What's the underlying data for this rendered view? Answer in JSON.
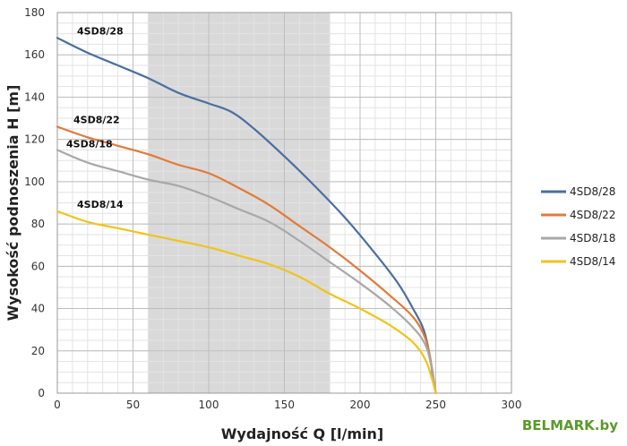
{
  "chart_data": {
    "type": "line",
    "title": "",
    "xlabel": "Wydajność Q [l/min]",
    "ylabel": "Wysokość podnoszenia H [m]",
    "xlim": [
      0,
      300
    ],
    "ylim": [
      0,
      180
    ],
    "xticks": [
      0,
      50,
      100,
      150,
      200,
      250,
      300
    ],
    "yticks": [
      0,
      20,
      40,
      60,
      80,
      100,
      120,
      140,
      160,
      180
    ],
    "xtick_labels": [
      "0",
      "50",
      "100",
      "150",
      "200",
      "250",
      "300"
    ],
    "ytick_labels": [
      "0",
      "20",
      "40",
      "60",
      "80",
      "100",
      "120",
      "140",
      "160",
      "180"
    ],
    "grid": true,
    "shaded_x_range": [
      60,
      180
    ],
    "legend_position": "right",
    "series": [
      {
        "name": "4SD8/28",
        "color": "#4a6f9f",
        "x": [
          0,
          20,
          40,
          60,
          80,
          100,
          115,
          130,
          150,
          170,
          190,
          210,
          225,
          235,
          242,
          246,
          248,
          250
        ],
        "y": [
          168,
          161,
          155,
          149,
          142,
          137,
          133,
          125,
          112,
          98,
          83,
          66,
          52,
          40,
          30,
          18,
          8,
          0
        ]
      },
      {
        "name": "4SD8/22",
        "color": "#e07b39",
        "x": [
          0,
          20,
          40,
          60,
          80,
          100,
          120,
          140,
          160,
          180,
          200,
          220,
          235,
          243,
          247,
          250
        ],
        "y": [
          126,
          121,
          117,
          113,
          108,
          104,
          97,
          89,
          79,
          69,
          58,
          46,
          36,
          26,
          14,
          0
        ]
      },
      {
        "name": "4SD8/18",
        "color": "#a8a8a8",
        "x": [
          0,
          20,
          40,
          60,
          80,
          100,
          120,
          140,
          160,
          180,
          200,
          220,
          235,
          243,
          247,
          250
        ],
        "y": [
          115,
          109,
          105,
          101,
          98,
          93,
          87,
          81,
          72,
          62,
          52,
          41,
          31,
          23,
          13,
          0
        ]
      },
      {
        "name": "4SD8/14",
        "color": "#f0c419",
        "x": [
          0,
          20,
          40,
          60,
          80,
          100,
          120,
          140,
          160,
          180,
          200,
          220,
          235,
          243,
          247,
          250
        ],
        "y": [
          86,
          81,
          78,
          75,
          72,
          69,
          65,
          61,
          55,
          47,
          40,
          32,
          24,
          16,
          8,
          0
        ]
      }
    ]
  },
  "watermark": "BELMARK.by"
}
